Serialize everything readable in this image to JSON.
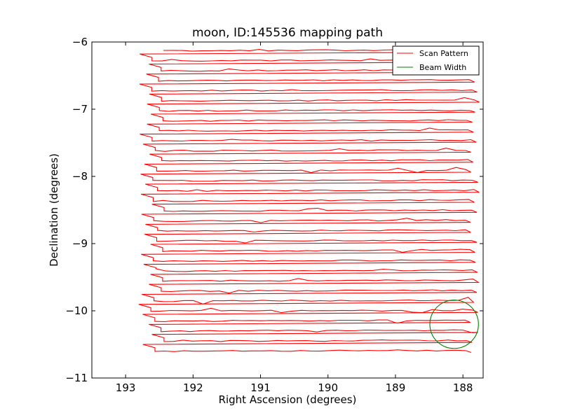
{
  "colors": {
    "scan": "#ff0000",
    "beam": "#007f00",
    "axes": "#000000",
    "background": "#ffffff"
  },
  "chart_data": {
    "type": "line",
    "title": "moon, ID:145536 mapping path",
    "xlabel": "Right Ascension (degrees)",
    "ylabel": "Declination (degrees)",
    "xlim": [
      193.5,
      187.7
    ],
    "ylim": [
      -11,
      -6
    ],
    "x_ticks": [
      193,
      192,
      191,
      190,
      189,
      188
    ],
    "x_tick_labels": [
      "193",
      "192",
      "191",
      "190",
      "189",
      "188"
    ],
    "y_ticks": [
      -6,
      -7,
      -8,
      -9,
      -10,
      -11
    ],
    "y_tick_labels": [
      "−6",
      "−7",
      "−8",
      "−9",
      "−10",
      "−11"
    ],
    "legend": {
      "placement": "top-right",
      "entries": [
        "Scan Pattern",
        "Beam Width"
      ]
    },
    "series": [
      {
        "name": "Scan Pattern",
        "description": "Raster scan: alternating horizontal sweeps from RA ~192.6 to ~187.9 deg, stepping ~0.15 deg in declination from -6.13 to -10.6",
        "ra_start": 192.6,
        "ra_end": 187.9,
        "dec_start": -6.13,
        "dec_step": -0.149,
        "rows": 31
      },
      {
        "name": "Beam Width",
        "shape": "circle",
        "center_ra": 188.13,
        "center_dec": -10.2,
        "radius_deg": 0.36
      }
    ]
  }
}
